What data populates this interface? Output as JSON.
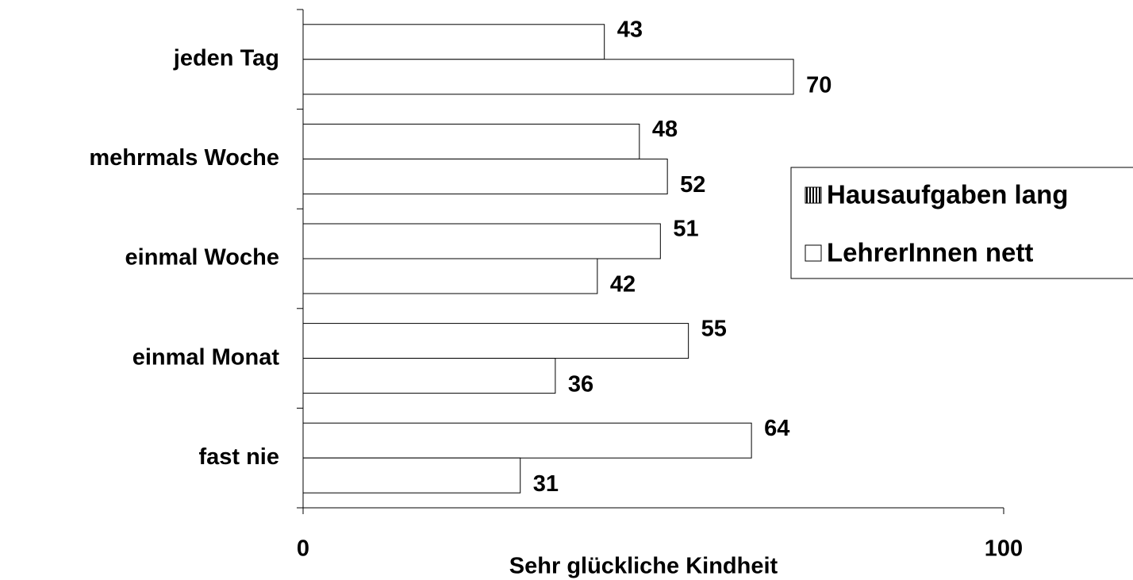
{
  "chart_data": {
    "type": "bar",
    "orientation": "horizontal",
    "x_label": "Sehr glückliche Kindheit",
    "categories": [
      "jeden Tag",
      "mehrmals Woche",
      "einmal Woche",
      "einmal Monat",
      "fast nie"
    ],
    "series": [
      {
        "name": "Hausaufgaben lang",
        "color": "#ffffff",
        "values": [
          43,
          48,
          51,
          55,
          64
        ]
      },
      {
        "name": "LehrerInnen nett",
        "color": "#ffffff",
        "values": [
          70,
          52,
          42,
          36,
          31
        ]
      }
    ],
    "xlim": [
      0,
      100
    ],
    "xticks": [
      0,
      100
    ],
    "grid": false,
    "legend": "right"
  }
}
